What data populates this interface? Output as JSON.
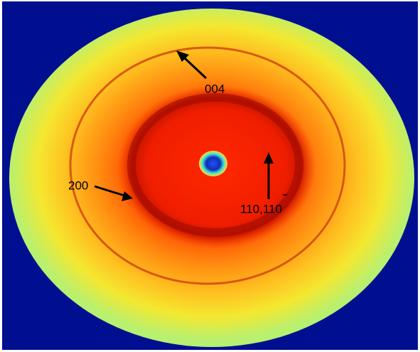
{
  "annotations": [
    {
      "label": "004"
    },
    {
      "label": "200"
    },
    {
      "label": "110,110"
    }
  ]
}
